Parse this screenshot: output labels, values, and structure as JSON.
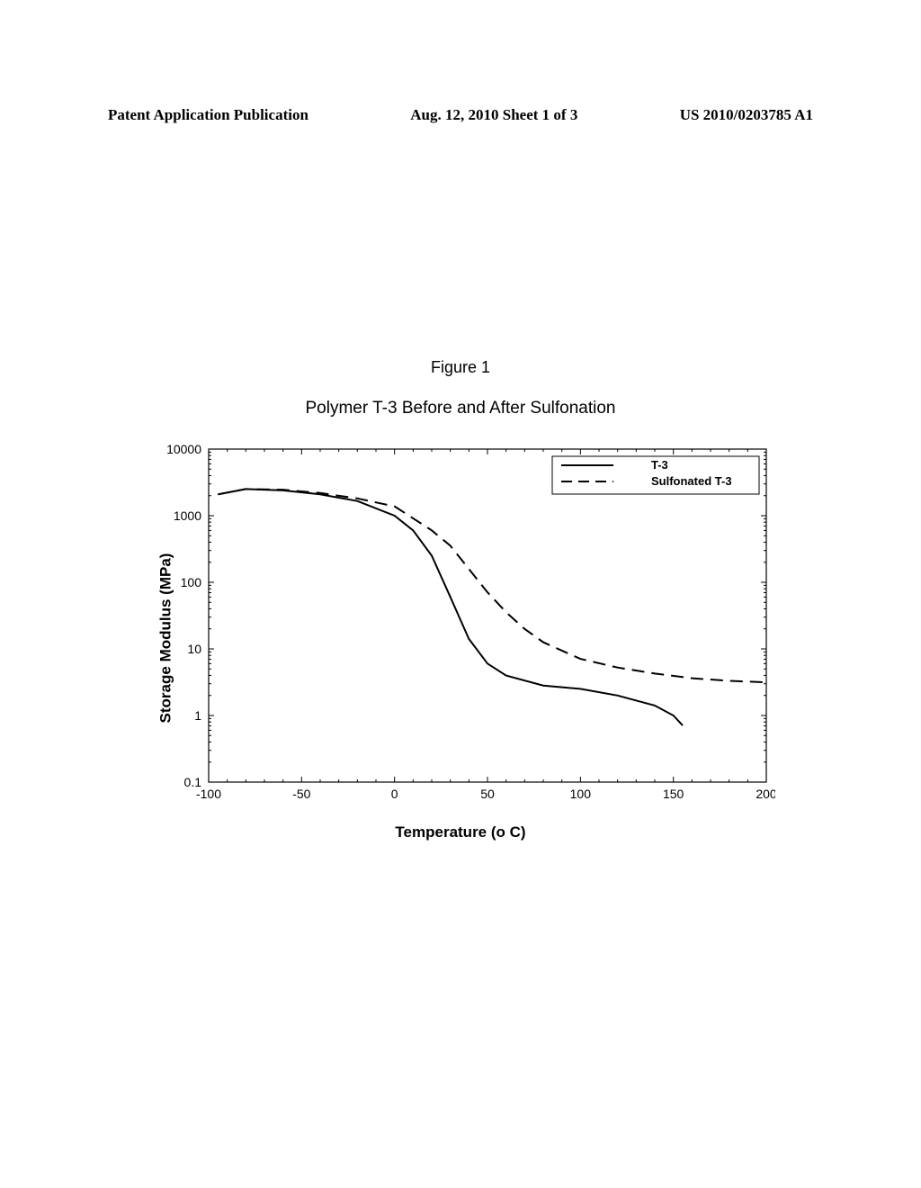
{
  "header": {
    "left": "Patent Application Publication",
    "center": "Aug. 12, 2010  Sheet 1 of 3",
    "right": "US 2010/0203785 A1"
  },
  "figure_label": "Figure 1",
  "chart": {
    "type": "line",
    "title": "Polymer T-3 Before and After Sulfonation",
    "xlabel": "Temperature (o C)",
    "ylabel": "Storage Modulus (MPa)",
    "xlim": [
      -100,
      200
    ],
    "ylim_log": [
      -1,
      4
    ],
    "xticks": [
      -100,
      -50,
      0,
      50,
      100,
      150,
      200
    ],
    "ytick_labels": [
      "0.1",
      "1",
      "10",
      "100",
      "1000",
      "10000"
    ],
    "ytick_logvals": [
      -1,
      0,
      1,
      2,
      3,
      4
    ],
    "background_color": "#ffffff",
    "axis_color": "#000000",
    "legend": {
      "items": [
        {
          "label": "T-3",
          "dash": false
        },
        {
          "label": "Sulfonated T-3",
          "dash": true
        }
      ]
    },
    "series": [
      {
        "name": "T-3",
        "dash": false,
        "color": "#000000",
        "x": [
          -95,
          -80,
          -60,
          -40,
          -20,
          0,
          10,
          20,
          30,
          40,
          50,
          60,
          80,
          100,
          120,
          140,
          150,
          155
        ],
        "ylog": [
          3.32,
          3.4,
          3.38,
          3.32,
          3.22,
          3.0,
          2.78,
          2.4,
          1.78,
          1.15,
          0.78,
          0.6,
          0.45,
          0.4,
          0.3,
          0.15,
          0.0,
          -0.15
        ]
      },
      {
        "name": "Sulfonated T-3",
        "dash": true,
        "color": "#000000",
        "x": [
          -95,
          -80,
          -60,
          -40,
          -20,
          0,
          20,
          30,
          40,
          50,
          60,
          70,
          80,
          100,
          120,
          140,
          160,
          180,
          198
        ],
        "ylog": [
          3.32,
          3.4,
          3.39,
          3.34,
          3.26,
          3.14,
          2.78,
          2.55,
          2.2,
          1.85,
          1.55,
          1.3,
          1.1,
          0.85,
          0.72,
          0.63,
          0.56,
          0.52,
          0.5
        ]
      }
    ]
  }
}
